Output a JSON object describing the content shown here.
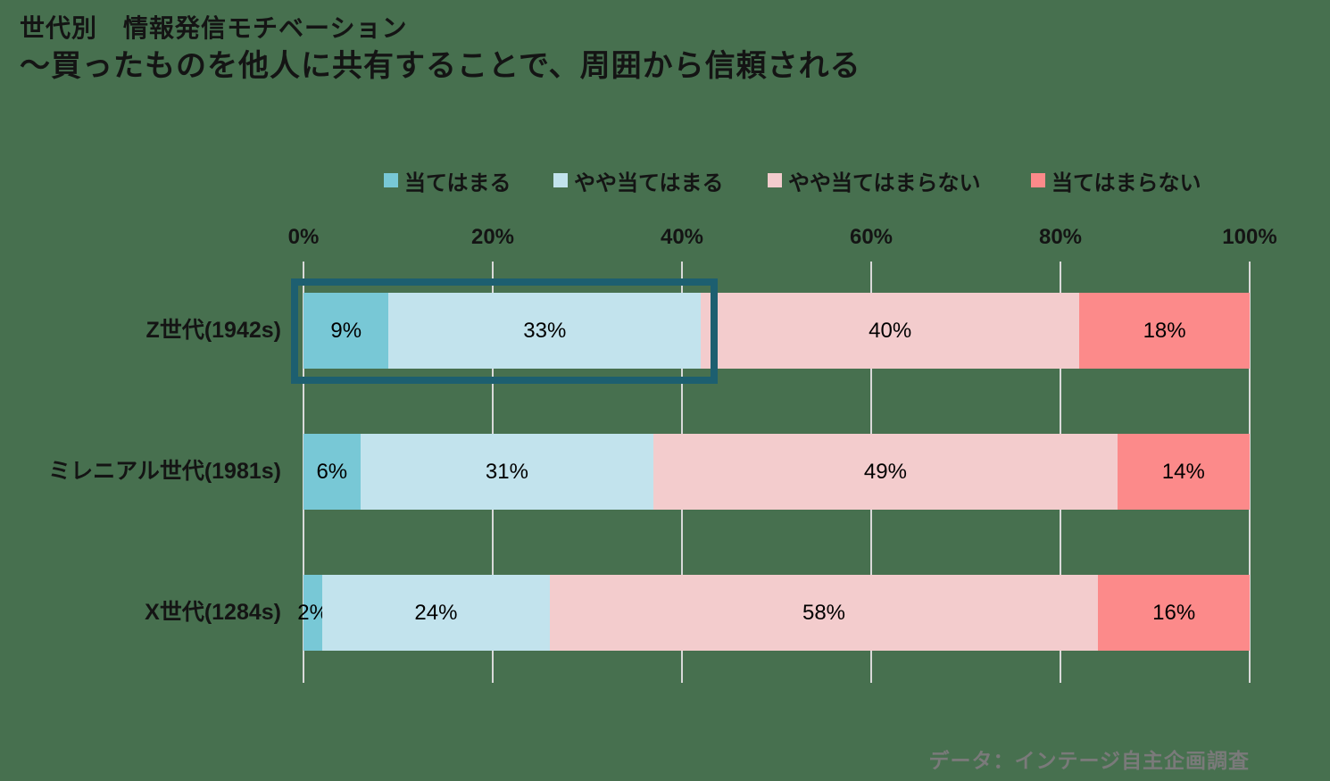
{
  "page": {
    "title": "世代別　情報発信モチベーション",
    "subtitle": "～買ったものを他人に共有することで、周囲から信頼される",
    "source_note": "データ：インテージ自主企画調査"
  },
  "colors": {
    "background": "#47704F",
    "gridline": "#D9D9D9",
    "highlight_box": "#1D5F70",
    "title_text": "#141414",
    "label_text": "#000000",
    "source_text": "#7A7A7A"
  },
  "chart_data": {
    "type": "bar",
    "orientation": "horizontal",
    "stacked": true,
    "unit": "%",
    "legend_position": "top",
    "categories": [
      "Z世代(1942s)",
      "ミレニアル世代(1981s)",
      "X世代(1284s)"
    ],
    "series": [
      {
        "name": "当てはまる",
        "color": "#78C8D6",
        "values": [
          9,
          6,
          2
        ]
      },
      {
        "name": "やや当てはまる",
        "color": "#C2E3ED",
        "values": [
          33,
          31,
          24
        ]
      },
      {
        "name": "やや当てはまらない",
        "color": "#F3CCCD",
        "values": [
          40,
          49,
          58
        ]
      },
      {
        "name": "当てはまらない",
        "color": "#FC8A8A",
        "values": [
          18,
          14,
          16
        ]
      }
    ],
    "x_axis": {
      "tick_labels": [
        "0%",
        "20%",
        "40%",
        "60%",
        "80%",
        "100%"
      ],
      "range": [
        0,
        100
      ],
      "grid": true
    },
    "annotations": [
      {
        "type": "highlight-box",
        "category": "Z世代(1942s)",
        "segments": [
          "当てはまる",
          "やや当てはまる"
        ]
      }
    ]
  }
}
